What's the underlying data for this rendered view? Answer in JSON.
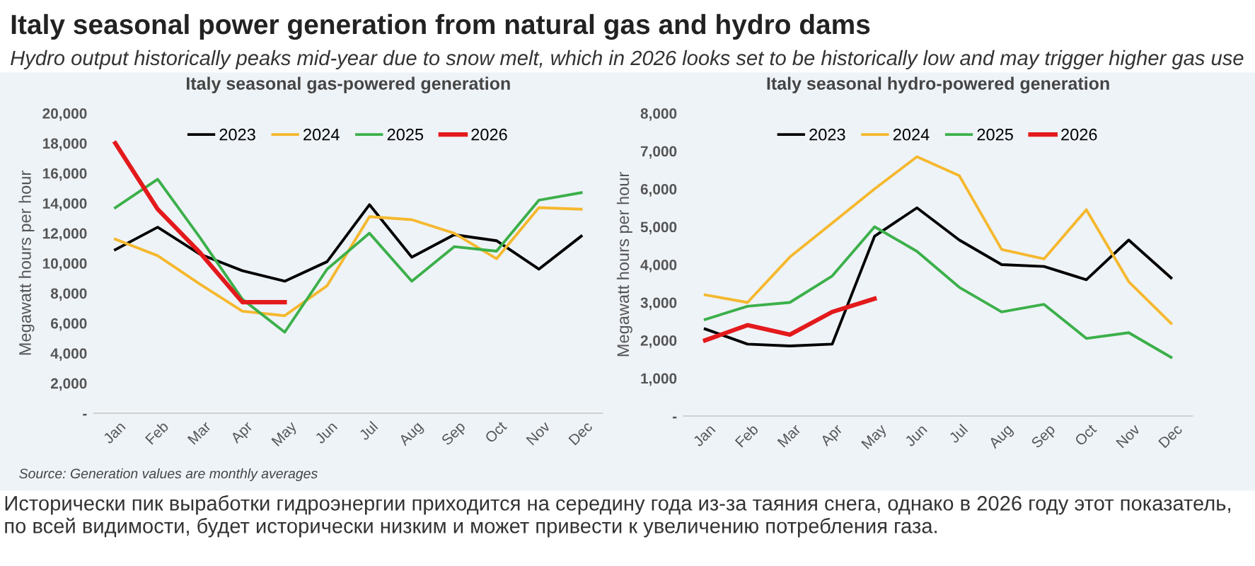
{
  "chart_data": [
    {
      "type": "other",
      "title": "Italy seasonal power generation from natural gas and hydro dams",
      "subtitle": "Hydro output historically peaks mid-year due to snow melt, which in 2026 looks set to be historically low and may trigger higher gas use",
      "annotations": [
        "Исторически пик выработки гидроэнергии приходится на середину года из-за таяния снега, однако в 2026 году этот показатель, по всей видимости, будет исторически низким и может привести к увеличению потребления газа."
      ]
    },
    {
      "type": "line",
      "title": "Italy seasonal gas-powered generation",
      "ylabel": "Megawatt hours per hour",
      "categories": [
        "Jan",
        "Feb",
        "Mar",
        "Apr",
        "May",
        "Jun",
        "Jul",
        "Aug",
        "Sep",
        "Oct",
        "Nov",
        "Dec"
      ],
      "series": [
        {
          "name": "2023",
          "color": "#000000",
          "values": [
            10900,
            12400,
            10600,
            9500,
            8800,
            10100,
            13900,
            10400,
            11900,
            11500,
            9600,
            11800
          ]
        },
        {
          "name": "2024",
          "color": "#f5b82e",
          "values": [
            11600,
            10500,
            8600,
            6800,
            6500,
            8500,
            13100,
            12900,
            12000,
            10300,
            13700,
            13600
          ]
        },
        {
          "name": "2025",
          "color": "#3cb04a",
          "values": [
            13700,
            15600,
            11700,
            7600,
            5400,
            9600,
            12000,
            8800,
            11100,
            10800,
            14200,
            14700
          ]
        },
        {
          "name": "2026",
          "color": "#e31a1c",
          "values": [
            18000,
            13600,
            10700,
            7400,
            7400,
            null,
            null,
            null,
            null,
            null,
            null,
            null
          ]
        }
      ],
      "ylim": [
        0,
        20000
      ],
      "yticks": [
        {
          "value": 0,
          "label": "-"
        },
        {
          "value": 2000,
          "label": "2,000"
        },
        {
          "value": 4000,
          "label": "4,000"
        },
        {
          "value": 6000,
          "label": "6,000"
        },
        {
          "value": 8000,
          "label": "8,000"
        },
        {
          "value": 10000,
          "label": "10,000"
        },
        {
          "value": 12000,
          "label": "12,000"
        },
        {
          "value": 14000,
          "label": "14,000"
        },
        {
          "value": 16000,
          "label": "16,000"
        },
        {
          "value": 18000,
          "label": "18,000"
        },
        {
          "value": 20000,
          "label": "20,000"
        }
      ],
      "legend": "top",
      "grid": false,
      "annotations": [
        "Source: Generation values are monthly averages"
      ]
    },
    {
      "type": "line",
      "title": "Italy seasonal hydro-powered generation",
      "ylabel": "Megawatt hours per hour",
      "categories": [
        "Jan",
        "Feb",
        "Mar",
        "Apr",
        "May",
        "Jun",
        "Jul",
        "Aug",
        "Sep",
        "Oct",
        "Nov",
        "Dec"
      ],
      "series": [
        {
          "name": "2023",
          "color": "#000000",
          "values": [
            2300,
            1900,
            1850,
            1900,
            4750,
            5500,
            4650,
            4000,
            3950,
            3600,
            4650,
            3650
          ]
        },
        {
          "name": "2024",
          "color": "#f5b82e",
          "values": [
            3200,
            3000,
            4200,
            5100,
            6000,
            6850,
            6350,
            4400,
            4150,
            5450,
            3550,
            2450
          ]
        },
        {
          "name": "2025",
          "color": "#3cb04a",
          "values": [
            2550,
            2900,
            3000,
            3700,
            5000,
            4350,
            3400,
            2750,
            2950,
            2050,
            2200,
            1550
          ]
        },
        {
          "name": "2026",
          "color": "#e31a1c",
          "values": [
            2000,
            2400,
            2150,
            2750,
            3100,
            null,
            null,
            null,
            null,
            null,
            null,
            null
          ]
        }
      ],
      "ylim": [
        0,
        8000
      ],
      "yticks": [
        {
          "value": 0,
          "label": "-"
        },
        {
          "value": 1000,
          "label": "1,000"
        },
        {
          "value": 2000,
          "label": "2,000"
        },
        {
          "value": 3000,
          "label": "3,000"
        },
        {
          "value": 4000,
          "label": "4,000"
        },
        {
          "value": 5000,
          "label": "5,000"
        },
        {
          "value": 6000,
          "label": "6,000"
        },
        {
          "value": 7000,
          "label": "7,000"
        },
        {
          "value": 8000,
          "label": "8,000"
        }
      ],
      "legend": "top",
      "grid": false
    }
  ]
}
